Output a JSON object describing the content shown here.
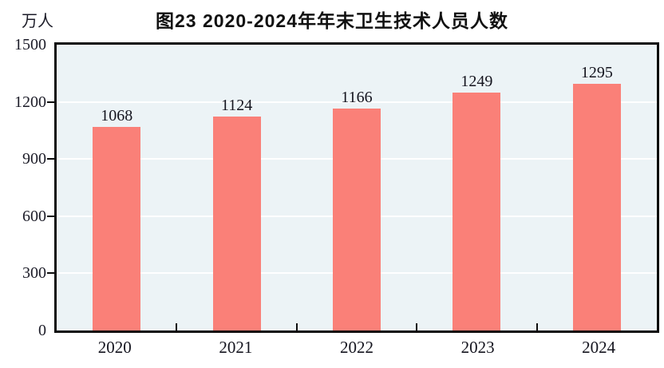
{
  "figure": {
    "title": "图23  2020-2024年年末卫生技术人员人数",
    "unit_label": "万人"
  },
  "chart_data": {
    "type": "bar",
    "title": "图23  2020-2024年年末卫生技术人员人数",
    "unit_label": "万人",
    "categories": [
      "2020",
      "2021",
      "2022",
      "2023",
      "2024"
    ],
    "values": [
      1068,
      1124,
      1166,
      1249,
      1295
    ],
    "value_labels": [
      "1068",
      "1124",
      "1166",
      "1249",
      "1295"
    ],
    "xlabel": "",
    "ylabel": "万人",
    "ylim": [
      0,
      1500
    ],
    "yticks": [
      0,
      300,
      600,
      900,
      1200,
      1500
    ],
    "grid": "horizontal",
    "legend": "none",
    "colors": {
      "bar": "#fa8078",
      "plot_background": "#ecf3f6",
      "gridline": "#ffffff",
      "axis_border": "#0d0d0d",
      "text": "#14141e"
    }
  }
}
